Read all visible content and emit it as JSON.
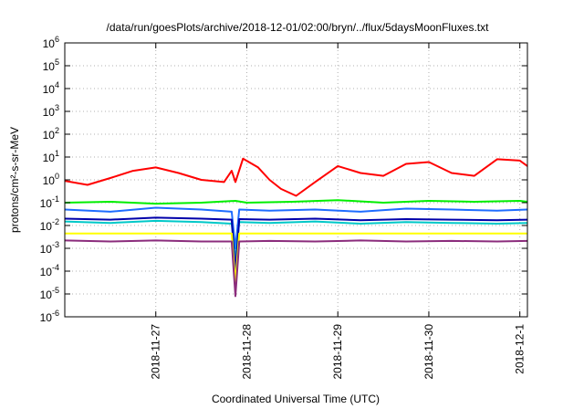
{
  "chart_data": {
    "type": "line",
    "title": "/data/run/goesPlots/archive/2018-12-01/02:00/bryn/../flux/5daysMoonFluxes.txt",
    "xlabel": "Coordinated Universal Time (UTC)",
    "ylabel": "protons/cm²-s-sr-MeV",
    "yscale": "log",
    "ylim": [
      1e-06,
      1000000.0
    ],
    "y_ticks": [
      {
        "exp": "-6"
      },
      {
        "exp": "-5"
      },
      {
        "exp": "-4"
      },
      {
        "exp": "-3"
      },
      {
        "exp": "-2"
      },
      {
        "exp": "-1"
      },
      {
        "exp": "0"
      },
      {
        "exp": "1"
      },
      {
        "exp": "2"
      },
      {
        "exp": "3"
      },
      {
        "exp": "4"
      },
      {
        "exp": "5"
      },
      {
        "exp": "6"
      }
    ],
    "y_tick_base": "10",
    "xlim": [
      "2018-11-26 00:00",
      "2018-12-01 02:00"
    ],
    "x_ticks": [
      "2018-11-27",
      "2018-11-28",
      "2018-11-29",
      "2018-11-30",
      "2018-12-1"
    ],
    "grid": true,
    "legend": "none",
    "series": [
      {
        "color": "#ff0000",
        "x": [
          "2018-11-26 00:00",
          "2018-11-26 06:00",
          "2018-11-26 12:00",
          "2018-11-26 18:00",
          "2018-11-27 00:00",
          "2018-11-27 06:00",
          "2018-11-27 12:00",
          "2018-11-27 18:00",
          "2018-11-27 20:00",
          "2018-11-27 21:00",
          "2018-11-27 23:00",
          "2018-11-28 03:00",
          "2018-11-28 06:00",
          "2018-11-28 09:00",
          "2018-11-28 13:00",
          "2018-11-28 18:00",
          "2018-11-29 00:00",
          "2018-11-29 06:00",
          "2018-11-29 12:00",
          "2018-11-29 18:00",
          "2018-11-30 00:00",
          "2018-11-30 06:00",
          "2018-11-30 12:00",
          "2018-11-30 18:00",
          "2018-12-01 00:00",
          "2018-12-01 02:00"
        ],
        "y": [
          0.9,
          0.6,
          1.2,
          2.5,
          3.5,
          2.0,
          1.0,
          0.8,
          2.5,
          0.8,
          8.5,
          3.5,
          1.0,
          0.4,
          0.2,
          0.8,
          4.0,
          2.0,
          1.5,
          5.0,
          6.0,
          2.0,
          1.5,
          8.0,
          7.0,
          4.0
        ]
      },
      {
        "color": "#00ee00",
        "x": [
          "2018-11-26 00:00",
          "2018-11-26 12:00",
          "2018-11-27 00:00",
          "2018-11-27 12:00",
          "2018-11-27 21:00",
          "2018-11-28 00:00",
          "2018-11-28 12:00",
          "2018-11-29 00:00",
          "2018-11-29 12:00",
          "2018-11-30 00:00",
          "2018-11-30 12:00",
          "2018-12-01 00:00",
          "2018-12-01 02:00"
        ],
        "y": [
          0.1,
          0.11,
          0.09,
          0.1,
          0.12,
          0.1,
          0.11,
          0.13,
          0.1,
          0.12,
          0.11,
          0.12,
          0.11
        ]
      },
      {
        "color": "#1e6cff",
        "x": [
          "2018-11-26 00:00",
          "2018-11-26 12:00",
          "2018-11-27 00:00",
          "2018-11-27 12:00",
          "2018-11-27 20:00",
          "2018-11-27 21:00",
          "2018-11-27 22:00",
          "2018-11-28 06:00",
          "2018-11-28 18:00",
          "2018-11-29 06:00",
          "2018-11-29 18:00",
          "2018-11-30 06:00",
          "2018-11-30 18:00",
          "2018-12-01 02:00"
        ],
        "y": [
          0.05,
          0.04,
          0.06,
          0.05,
          0.04,
          0.001,
          0.05,
          0.045,
          0.05,
          0.04,
          0.055,
          0.05,
          0.045,
          0.05
        ]
      },
      {
        "color": "#00c8c8",
        "x": [
          "2018-11-26 00:00",
          "2018-11-26 12:00",
          "2018-11-27 00:00",
          "2018-11-27 12:00",
          "2018-11-27 20:00",
          "2018-11-27 21:00",
          "2018-11-27 22:00",
          "2018-11-28 06:00",
          "2018-11-28 18:00",
          "2018-11-29 06:00",
          "2018-11-29 18:00",
          "2018-11-30 06:00",
          "2018-11-30 18:00",
          "2018-12-01 02:00"
        ],
        "y": [
          0.015,
          0.013,
          0.016,
          0.014,
          0.012,
          0.0003,
          0.014,
          0.013,
          0.015,
          0.012,
          0.014,
          0.013,
          0.012,
          0.013
        ]
      },
      {
        "color": "#0000aa",
        "x": [
          "2018-11-26 00:00",
          "2018-11-26 12:00",
          "2018-11-27 00:00",
          "2018-11-27 12:00",
          "2018-11-27 20:00",
          "2018-11-27 21:00",
          "2018-11-27 22:00",
          "2018-11-28 06:00",
          "2018-11-28 18:00",
          "2018-11-29 06:00",
          "2018-11-29 18:00",
          "2018-11-30 06:00",
          "2018-11-30 18:00",
          "2018-12-01 02:00"
        ],
        "y": [
          0.02,
          0.018,
          0.022,
          0.02,
          0.018,
          0.0001,
          0.019,
          0.018,
          0.02,
          0.017,
          0.019,
          0.018,
          0.017,
          0.018
        ]
      },
      {
        "color": "#ffff00",
        "x": [
          "2018-11-26 00:00",
          "2018-11-26 12:00",
          "2018-11-27 00:00",
          "2018-11-27 12:00",
          "2018-11-27 20:00",
          "2018-11-27 21:00",
          "2018-11-27 22:00",
          "2018-11-28 06:00",
          "2018-11-28 18:00",
          "2018-11-29 06:00",
          "2018-11-29 18:00",
          "2018-11-30 06:00",
          "2018-11-30 18:00",
          "2018-12-01 02:00"
        ],
        "y": [
          0.0045,
          0.0045,
          0.0045,
          0.0045,
          0.0045,
          3e-05,
          0.0045,
          0.0045,
          0.0045,
          0.0045,
          0.0045,
          0.0045,
          0.0045,
          0.0045
        ]
      },
      {
        "color": "#8b2c7c",
        "x": [
          "2018-11-26 00:00",
          "2018-11-26 12:00",
          "2018-11-27 00:00",
          "2018-11-27 12:00",
          "2018-11-27 20:00",
          "2018-11-27 21:00",
          "2018-11-27 22:00",
          "2018-11-28 06:00",
          "2018-11-28 18:00",
          "2018-11-29 06:00",
          "2018-11-29 18:00",
          "2018-11-30 06:00",
          "2018-11-30 18:00",
          "2018-12-01 02:00"
        ],
        "y": [
          0.0022,
          0.002,
          0.0022,
          0.002,
          0.002,
          8e-06,
          0.002,
          0.0021,
          0.002,
          0.0022,
          0.002,
          0.0021,
          0.002,
          0.0021
        ]
      }
    ]
  }
}
